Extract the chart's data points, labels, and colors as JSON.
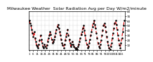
{
  "title": "Milwaukee Weather  Solar Radiation Avg per Day W/m2/minute",
  "title_fontsize": 4.5,
  "line_color": "#DD0000",
  "dot_color": "#000000",
  "background_color": "#ffffff",
  "plot_bg_color": "#ffffff",
  "grid_color": "#999999",
  "ylim": [
    0,
    80
  ],
  "yticks": [
    10,
    20,
    30,
    40,
    50,
    60,
    70,
    80
  ],
  "ytick_labels": [
    "10",
    "20",
    "30",
    "40",
    "50",
    "60",
    "70",
    "80"
  ],
  "values": [
    60,
    55,
    50,
    42,
    35,
    28,
    38,
    25,
    18,
    10,
    8,
    5,
    12,
    20,
    30,
    22,
    15,
    8,
    5,
    12,
    8,
    5,
    10,
    18,
    25,
    30,
    38,
    32,
    22,
    15,
    18,
    22,
    28,
    35,
    42,
    48,
    52,
    45,
    38,
    30,
    22,
    15,
    10,
    5,
    12,
    20,
    28,
    35,
    42,
    30,
    22,
    15,
    8,
    12,
    18,
    12,
    8,
    5,
    2,
    5,
    2,
    8,
    12,
    18,
    25,
    32,
    38,
    45,
    50,
    40,
    30,
    20,
    12,
    5,
    8,
    15,
    22,
    30,
    38,
    48,
    55,
    60,
    52,
    45,
    35,
    25,
    15,
    8,
    5,
    12,
    20,
    30,
    40,
    50,
    55,
    48,
    38,
    28,
    18,
    10,
    5,
    2,
    8,
    15,
    25,
    35,
    45,
    55,
    60,
    52,
    42,
    30,
    20,
    10,
    5,
    15,
    25,
    38,
    50,
    60
  ],
  "x_label_interval": 5,
  "line_width": 0.8,
  "dot_size": 1.8,
  "dashes": [
    4,
    3
  ]
}
